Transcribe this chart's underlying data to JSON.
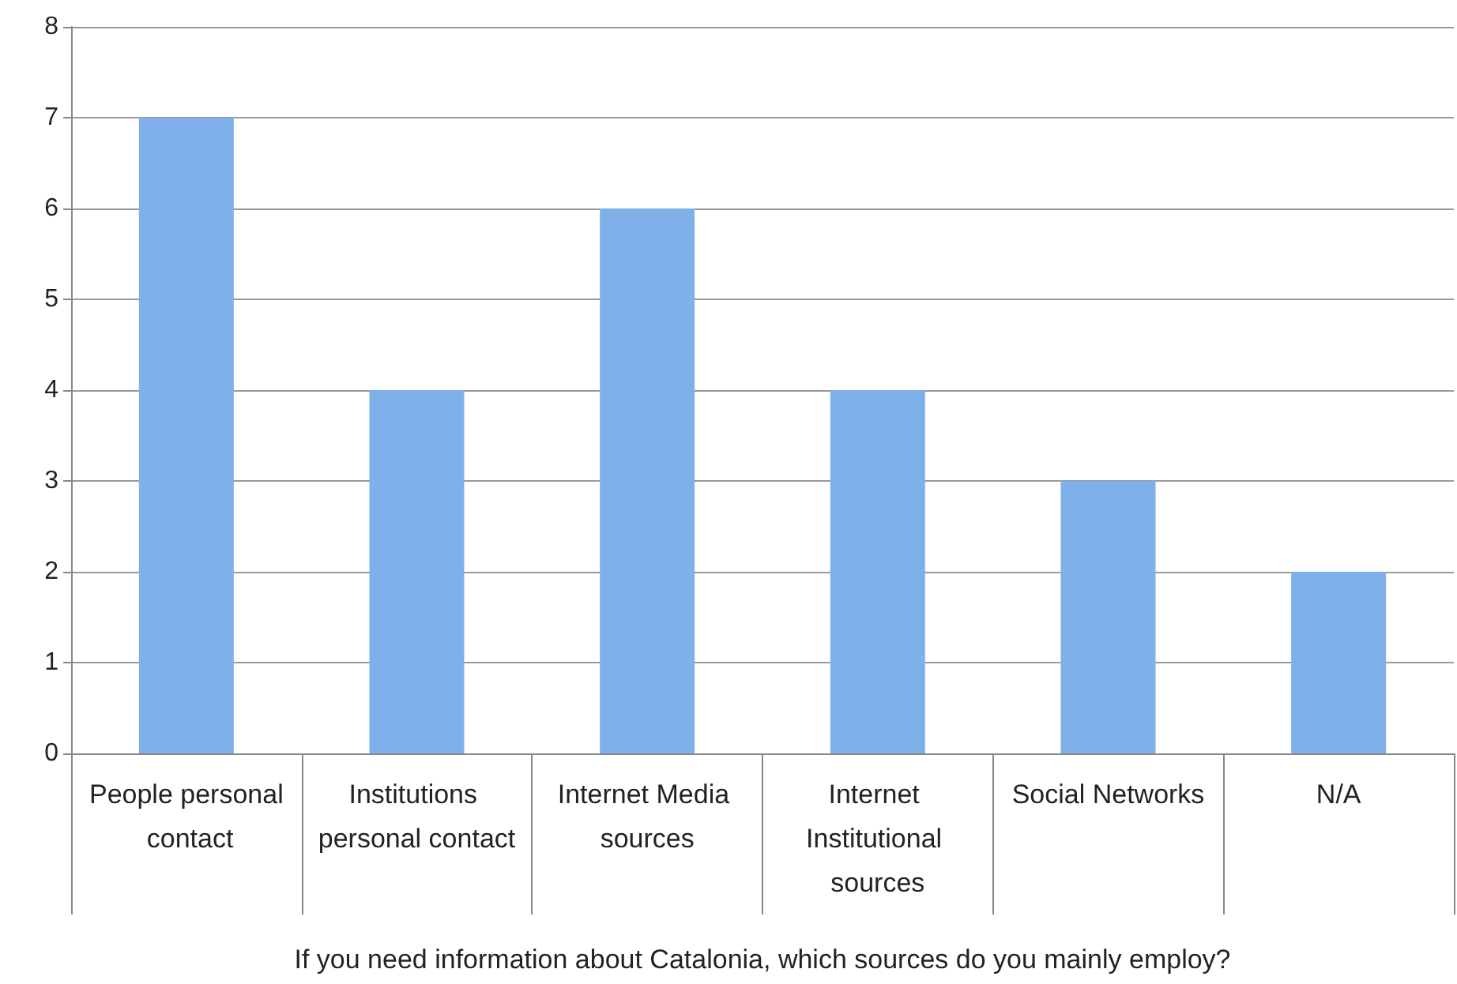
{
  "chart_data": {
    "type": "bar",
    "xlabel": "If you need information about Catalonia, which sources do you mainly employ?",
    "categories": [
      "People personal contact",
      "Institutions personal contact",
      "Internet Media sources",
      "Internet Institutional sources",
      "Social Networks",
      "N/A"
    ],
    "values": [
      7,
      4,
      6,
      4,
      3,
      2
    ],
    "color": "#7fb0ea",
    "ylim": [
      0,
      8
    ],
    "yticks": [
      0,
      1,
      2,
      3,
      4,
      5,
      6,
      7,
      8
    ],
    "grid": "y"
  }
}
